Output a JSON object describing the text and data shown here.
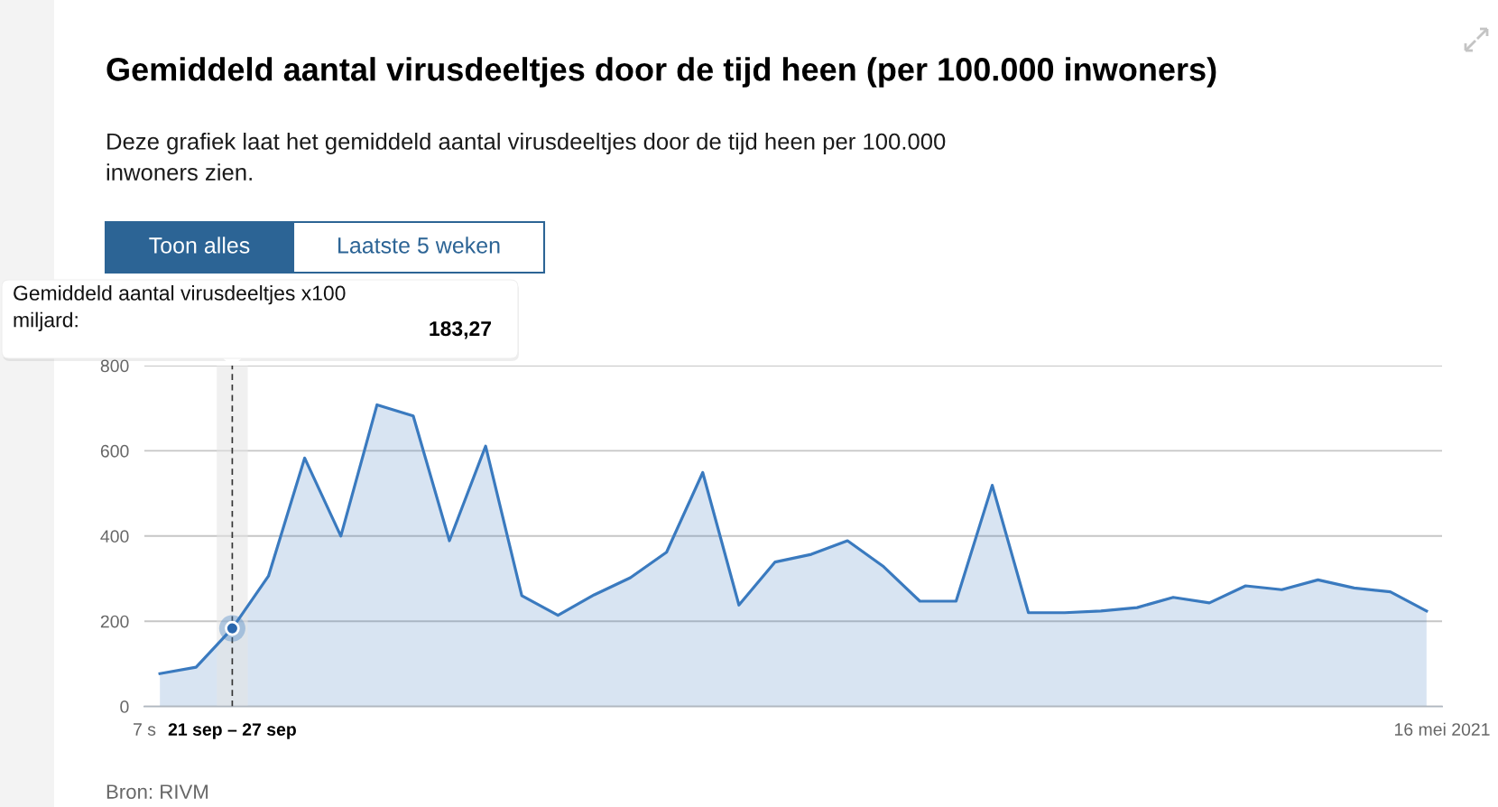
{
  "chart_data": {
    "type": "area",
    "title": "Gemiddeld aantal virusdeeltjes door de tijd heen (per 100.000 inwoners)",
    "subtitle": "Deze grafiek laat het gemiddeld aantal virusdeeltjes door de tijd heen per 100.000 inwoners zien.",
    "x": [
      "2020-09-10",
      "2020-09-17",
      "2020-09-24",
      "2020-10-01",
      "2020-10-08",
      "2020-10-15",
      "2020-10-22",
      "2020-10-29",
      "2020-11-05",
      "2020-11-12",
      "2020-11-19",
      "2020-11-26",
      "2020-12-03",
      "2020-12-10",
      "2020-12-17",
      "2020-12-24",
      "2020-12-31",
      "2021-01-07",
      "2021-01-14",
      "2021-01-21",
      "2021-01-28",
      "2021-02-04",
      "2021-02-11",
      "2021-02-18",
      "2021-02-25",
      "2021-03-04",
      "2021-03-11",
      "2021-03-18",
      "2021-03-25",
      "2021-04-01",
      "2021-04-08",
      "2021-04-15",
      "2021-04-22",
      "2021-04-29",
      "2021-05-06",
      "2021-05-13"
    ],
    "series": [
      {
        "color": "#3a7abf",
        "values": [
          77,
          92,
          183.27,
          306,
          583,
          400,
          708,
          682,
          389,
          611,
          260,
          214,
          262,
          302,
          362,
          549,
          238,
          339,
          357,
          389,
          328,
          247,
          247,
          519,
          220,
          220,
          224,
          232,
          256,
          243,
          283,
          274,
          297,
          278,
          269,
          224
        ]
      }
    ],
    "xlim": [
      "2020-09-07",
      "2021-05-16"
    ],
    "xticks": [
      {
        "value": "2020-09-07",
        "label": "7 s"
      },
      {
        "value": "2021-05-16",
        "label": "16 mei 2021"
      }
    ],
    "ylim": [
      0,
      800
    ],
    "yticks": [
      0,
      200,
      400,
      600,
      800
    ],
    "grid": "y",
    "ref_lines": [
      {
        "axis": "x",
        "value": "2020-09-24",
        "color": "#333333",
        "line_style": "dashed"
      }
    ],
    "bands": [
      {
        "axis": "x",
        "from": "2020-09-21",
        "to": "2020-09-27",
        "label": "21 sep – 27 sep",
        "color": "#e4e4e4"
      }
    ],
    "annotations": [
      "Toon alles",
      "Laatste 5 weken",
      "Gemiddeld aantal virusdeeltjes x100 miljard:",
      "183,27",
      "Bron: RIVM"
    ]
  }
}
